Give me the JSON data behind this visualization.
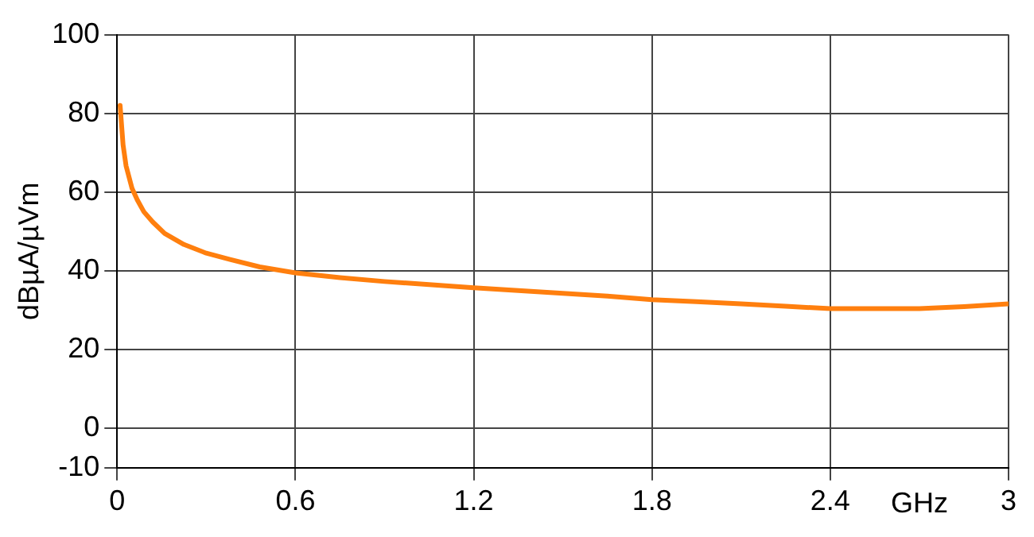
{
  "chart_data": {
    "type": "line",
    "xlabel": "GHz",
    "ylabel": "dBµA/µVm",
    "series": [
      {
        "color": "#ff7f0e",
        "x": [
          0.01,
          0.02,
          0.03,
          0.05,
          0.068,
          0.09,
          0.12,
          0.16,
          0.225,
          0.3,
          0.38,
          0.48,
          0.6,
          0.75,
          0.9,
          1.05,
          1.2,
          1.35,
          1.5,
          1.65,
          1.8,
          1.95,
          2.1,
          2.25,
          2.4,
          2.55,
          2.7,
          2.85,
          3.0
        ],
        "values": [
          82,
          72,
          66.7,
          61,
          58,
          55,
          52.4,
          49.5,
          46.7,
          44.5,
          42.9,
          41,
          39.5,
          38.3,
          37.3,
          36.5,
          35.7,
          35,
          34.3,
          33.6,
          32.7,
          32.2,
          31.6,
          31,
          30.4,
          30.4,
          30.4,
          30.9,
          31.6
        ]
      }
    ],
    "xlim": [
      0,
      3
    ],
    "xticks": [
      0,
      0.6,
      1.2,
      1.8,
      2.4,
      3
    ],
    "ylim": [
      -10,
      100
    ],
    "yticks": [
      -10,
      0,
      20,
      40,
      60,
      80,
      100
    ],
    "grid": true,
    "legend": false,
    "marker": "none",
    "line_style": "solid"
  }
}
